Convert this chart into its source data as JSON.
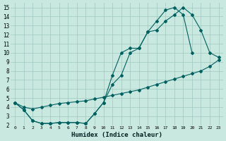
{
  "background_color": "#c8e8e0",
  "grid_color": "#a0c8c0",
  "line_color": "#006060",
  "marker": "D",
  "xlabel": "Humidex (Indice chaleur)",
  "xlim": [
    -0.5,
    23.5
  ],
  "ylim": [
    2,
    15.5
  ],
  "xticks": [
    0,
    1,
    2,
    3,
    4,
    5,
    6,
    7,
    8,
    9,
    10,
    11,
    12,
    13,
    14,
    15,
    16,
    17,
    18,
    19,
    20,
    21,
    22,
    23
  ],
  "yticks": [
    2,
    3,
    4,
    5,
    6,
    7,
    8,
    9,
    10,
    11,
    12,
    13,
    14,
    15
  ],
  "curve1_x": [
    0,
    1,
    2,
    3,
    4,
    5,
    6,
    7,
    8,
    9,
    10,
    11,
    12,
    13,
    14,
    15,
    16,
    17,
    18,
    19,
    20,
    21,
    22,
    23
  ],
  "curve1_y": [
    4.5,
    3.7,
    2.5,
    2.2,
    2.2,
    2.3,
    2.3,
    2.3,
    2.2,
    3.3,
    4.5,
    6.5,
    7.5,
    10.0,
    10.5,
    12.3,
    12.5,
    13.5,
    14.2,
    15.0,
    14.2,
    12.5,
    10.0,
    9.5
  ],
  "curve2_x": [
    0,
    1,
    2,
    3,
    4,
    5,
    6,
    7,
    8,
    9,
    10,
    11,
    12,
    13,
    14,
    15,
    16,
    17,
    18,
    19,
    20
  ],
  "curve2_y": [
    4.5,
    3.7,
    2.5,
    2.2,
    2.2,
    2.3,
    2.3,
    2.3,
    2.2,
    3.3,
    4.5,
    7.5,
    10.0,
    10.5,
    10.5,
    12.3,
    13.5,
    14.7,
    15.0,
    14.2,
    10.0
  ],
  "curve3_x": [
    0,
    1,
    2,
    3,
    4,
    5,
    6,
    7,
    8,
    9,
    10,
    11,
    12,
    13,
    14,
    15,
    16,
    17,
    18,
    19,
    20,
    21,
    22,
    23
  ],
  "curve3_y": [
    4.5,
    4.0,
    3.8,
    4.0,
    4.2,
    4.4,
    4.5,
    4.6,
    4.7,
    4.9,
    5.1,
    5.3,
    5.5,
    5.7,
    5.9,
    6.2,
    6.5,
    6.8,
    7.1,
    7.4,
    7.7,
    8.0,
    8.5,
    9.2
  ]
}
